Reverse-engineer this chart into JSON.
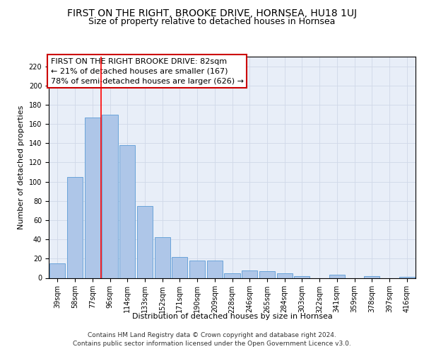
{
  "title": "FIRST ON THE RIGHT, BROOKE DRIVE, HORNSEA, HU18 1UJ",
  "subtitle": "Size of property relative to detached houses in Hornsea",
  "xlabel": "Distribution of detached houses by size in Hornsea",
  "ylabel": "Number of detached properties",
  "categories": [
    "39sqm",
    "58sqm",
    "77sqm",
    "96sqm",
    "114sqm",
    "133sqm",
    "152sqm",
    "171sqm",
    "190sqm",
    "209sqm",
    "228sqm",
    "246sqm",
    "265sqm",
    "284sqm",
    "303sqm",
    "322sqm",
    "341sqm",
    "359sqm",
    "378sqm",
    "397sqm",
    "416sqm"
  ],
  "values": [
    15,
    105,
    167,
    170,
    138,
    75,
    42,
    22,
    18,
    18,
    5,
    8,
    7,
    5,
    2,
    0,
    3,
    0,
    2,
    0,
    1
  ],
  "bar_color": "#aec6e8",
  "bar_edge_color": "#5b9bd5",
  "grid_color": "#d0d8e8",
  "background_color": "#e8eef8",
  "annotation_box_color": "#ffffff",
  "annotation_border_color": "#cc0000",
  "red_line_x": 2.5,
  "annotation_lines": [
    "FIRST ON THE RIGHT BROOKE DRIVE: 82sqm",
    "← 21% of detached houses are smaller (167)",
    "78% of semi-detached houses are larger (626) →"
  ],
  "footer_lines": [
    "Contains HM Land Registry data © Crown copyright and database right 2024.",
    "Contains public sector information licensed under the Open Government Licence v3.0."
  ],
  "ylim": [
    0,
    230
  ],
  "yticks": [
    0,
    20,
    40,
    60,
    80,
    100,
    120,
    140,
    160,
    180,
    200,
    220
  ],
  "title_fontsize": 10,
  "subtitle_fontsize": 9,
  "axis_label_fontsize": 8,
  "tick_fontsize": 7,
  "annotation_fontsize": 8,
  "footer_fontsize": 6.5
}
